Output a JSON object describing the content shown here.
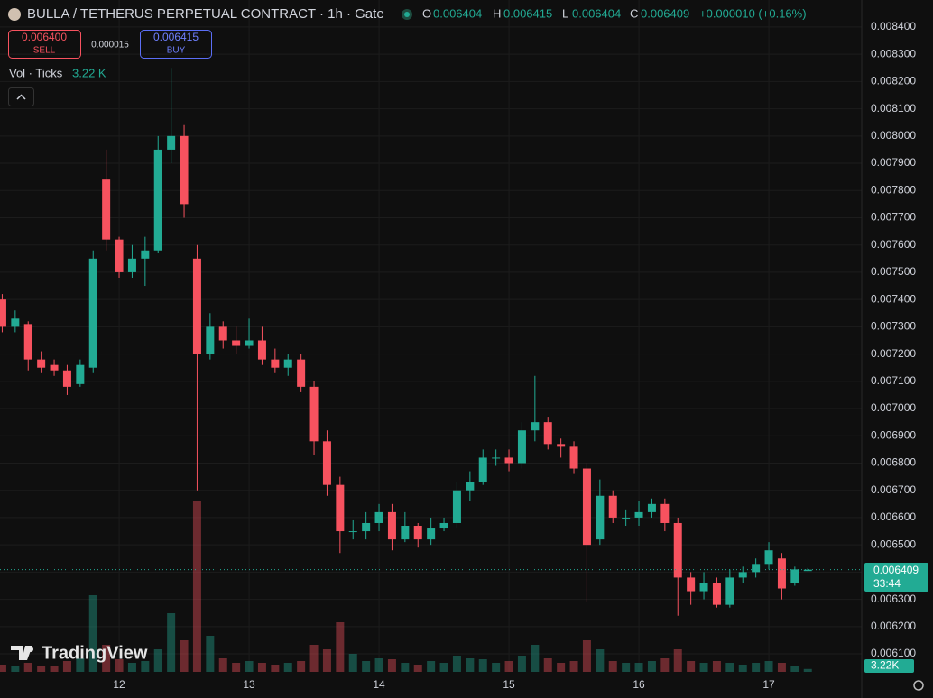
{
  "header": {
    "title": "BULLA / TETHERUS PERPETUAL CONTRACT · 1h · Gate",
    "o_label": "O",
    "open": "0.006404",
    "h_label": "H",
    "high": "0.006415",
    "l_label": "L",
    "low": "0.006404",
    "c_label": "C",
    "close": "0.006409",
    "change": "+0.000010 (+0.16%)",
    "sell_price": "0.006400",
    "sell_label": "SELL",
    "spread": "0.000015",
    "buy_price": "0.006415",
    "buy_label": "BUY",
    "volume_indicator": "Vol · Ticks",
    "volume_value": "3.22 K",
    "logo": "TradingView",
    "price_label": "0.006409",
    "countdown": "33:44",
    "volume_label": "3.22K"
  },
  "chart_data": {
    "type": "candlestick",
    "up_color": "#22ab94",
    "down_color": "#f7525f",
    "grid": true,
    "xlim": [
      11.083,
      17.715
    ],
    "xticks": [
      12,
      13,
      14,
      15,
      16,
      17
    ],
    "ylim": [
      0.006034,
      0.008499
    ],
    "yticks": [
      {
        "value": 0.0061,
        "label": "0.006100"
      },
      {
        "value": 0.0062,
        "label": "0.006200"
      },
      {
        "value": 0.0063,
        "label": "0.006300"
      },
      {
        "value": 0.0064,
        "label": "0.006400"
      },
      {
        "value": 0.0065,
        "label": "0.006500"
      },
      {
        "value": 0.0066,
        "label": "0.006600"
      },
      {
        "value": 0.0067,
        "label": "0.006700"
      },
      {
        "value": 0.0068,
        "label": "0.006800"
      },
      {
        "value": 0.0069,
        "label": "0.006900"
      },
      {
        "value": 0.007,
        "label": "0.007000"
      },
      {
        "value": 0.0071,
        "label": "0.007100"
      },
      {
        "value": 0.0072,
        "label": "0.007200"
      },
      {
        "value": 0.0073,
        "label": "0.007300"
      },
      {
        "value": 0.0074,
        "label": "0.007400"
      },
      {
        "value": 0.0075,
        "label": "0.007500"
      },
      {
        "value": 0.0076,
        "label": "0.007600"
      },
      {
        "value": 0.0077,
        "label": "0.007700"
      },
      {
        "value": 0.0078,
        "label": "0.007800"
      },
      {
        "value": 0.0079,
        "label": "0.007900"
      },
      {
        "value": 0.008,
        "label": "0.008000"
      },
      {
        "value": 0.0081,
        "label": "0.008100"
      },
      {
        "value": 0.0082,
        "label": "0.008200"
      },
      {
        "value": 0.0083,
        "label": "0.008300"
      },
      {
        "value": 0.0084,
        "label": "0.008400"
      }
    ],
    "x": [
      11.1,
      11.2,
      11.3,
      11.4,
      11.5,
      11.6,
      11.7,
      11.8,
      11.9,
      12.0,
      12.1,
      12.2,
      12.3,
      12.4,
      12.5,
      12.6,
      12.7,
      12.8,
      12.9,
      13.0,
      13.1,
      13.2,
      13.3,
      13.4,
      13.5,
      13.6,
      13.7,
      13.8,
      13.9,
      14.0,
      14.1,
      14.2,
      14.3,
      14.4,
      14.5,
      14.6,
      14.7,
      14.8,
      14.9,
      15.0,
      15.1,
      15.2,
      15.3,
      15.4,
      15.5,
      15.6,
      15.7,
      15.8,
      15.9,
      16.0,
      16.1,
      16.2,
      16.3,
      16.4,
      16.5,
      16.6,
      16.7,
      16.8,
      16.9,
      17.0,
      17.1,
      17.2,
      17.3
    ],
    "open": [
      0.0074,
      0.0073,
      0.00731,
      0.00718,
      0.00716,
      0.00714,
      0.00709,
      0.00715,
      0.00784,
      0.00762,
      0.0075,
      0.00755,
      0.00758,
      0.00795,
      0.008,
      0.00755,
      0.0072,
      0.0073,
      0.00725,
      0.00723,
      0.00725,
      0.00718,
      0.00715,
      0.00718,
      0.00708,
      0.00688,
      0.00672,
      0.00655,
      0.00655,
      0.00658,
      0.00662,
      0.00652,
      0.00657,
      0.00652,
      0.00656,
      0.00658,
      0.0067,
      0.00673,
      0.00682,
      0.00682,
      0.0068,
      0.00692,
      0.00695,
      0.00687,
      0.00686,
      0.00678,
      0.00652,
      0.00668,
      0.0066,
      0.0066,
      0.00662,
      0.00665,
      0.00658,
      0.00638,
      0.00633,
      0.00636,
      0.00628,
      0.00638,
      0.0064,
      0.00643,
      0.00645,
      0.00636,
      0.006404
    ],
    "high": [
      0.00742,
      0.00736,
      0.00732,
      0.00721,
      0.00718,
      0.00716,
      0.00718,
      0.00758,
      0.00795,
      0.00763,
      0.0076,
      0.00763,
      0.008,
      0.00825,
      0.00804,
      0.0076,
      0.00735,
      0.00732,
      0.0073,
      0.00733,
      0.0073,
      0.00722,
      0.0072,
      0.0072,
      0.0071,
      0.00692,
      0.00675,
      0.00659,
      0.00662,
      0.00665,
      0.00665,
      0.00662,
      0.00658,
      0.0066,
      0.0066,
      0.00673,
      0.00677,
      0.00685,
      0.00685,
      0.00685,
      0.00695,
      0.00712,
      0.00697,
      0.00689,
      0.00688,
      0.0068,
      0.00674,
      0.0067,
      0.00663,
      0.00666,
      0.00667,
      0.00667,
      0.0066,
      0.0064,
      0.0064,
      0.00638,
      0.00641,
      0.00642,
      0.00645,
      0.00651,
      0.00647,
      0.00642,
      0.006415
    ],
    "low": [
      0.00728,
      0.00728,
      0.00714,
      0.00713,
      0.00712,
      0.00705,
      0.00708,
      0.00713,
      0.00758,
      0.00748,
      0.00748,
      0.00745,
      0.00757,
      0.0079,
      0.0077,
      0.0067,
      0.00718,
      0.00722,
      0.0072,
      0.00722,
      0.00716,
      0.00713,
      0.00712,
      0.00706,
      0.00683,
      0.00668,
      0.00647,
      0.00652,
      0.00652,
      0.00655,
      0.00648,
      0.00651,
      0.00649,
      0.0065,
      0.00655,
      0.00656,
      0.00666,
      0.00672,
      0.00679,
      0.00677,
      0.00678,
      0.00688,
      0.00685,
      0.00682,
      0.00676,
      0.00629,
      0.0065,
      0.00658,
      0.00657,
      0.00657,
      0.0066,
      0.00655,
      0.00624,
      0.00628,
      0.0063,
      0.00627,
      0.00627,
      0.00636,
      0.00638,
      0.00641,
      0.0063,
      0.00635,
      0.006404
    ],
    "close": [
      0.0073,
      0.00733,
      0.00718,
      0.00715,
      0.00714,
      0.00708,
      0.00716,
      0.00755,
      0.00762,
      0.0075,
      0.00755,
      0.00758,
      0.00795,
      0.008,
      0.00775,
      0.0072,
      0.0073,
      0.00725,
      0.00723,
      0.00725,
      0.00718,
      0.00715,
      0.00718,
      0.00708,
      0.00688,
      0.00672,
      0.00655,
      0.00655,
      0.00658,
      0.00662,
      0.00652,
      0.00657,
      0.00652,
      0.00656,
      0.00658,
      0.0067,
      0.00673,
      0.00682,
      0.00682,
      0.0068,
      0.00692,
      0.00695,
      0.00687,
      0.00686,
      0.00678,
      0.0065,
      0.00668,
      0.0066,
      0.0066,
      0.00662,
      0.00665,
      0.00658,
      0.00638,
      0.00633,
      0.00636,
      0.00628,
      0.00638,
      0.0064,
      0.00643,
      0.00648,
      0.00634,
      0.00641,
      0.006409
    ],
    "volume": [
      8,
      6,
      10,
      7,
      6,
      12,
      15,
      85,
      30,
      14,
      10,
      12,
      25,
      65,
      35,
      190,
      40,
      15,
      10,
      12,
      10,
      8,
      10,
      12,
      30,
      25,
      55,
      20,
      12,
      15,
      14,
      10,
      8,
      12,
      10,
      18,
      15,
      14,
      10,
      12,
      18,
      30,
      15,
      10,
      12,
      35,
      25,
      12,
      10,
      10,
      12,
      15,
      25,
      12,
      10,
      12,
      10,
      8,
      10,
      12,
      10,
      6,
      3.22
    ]
  }
}
